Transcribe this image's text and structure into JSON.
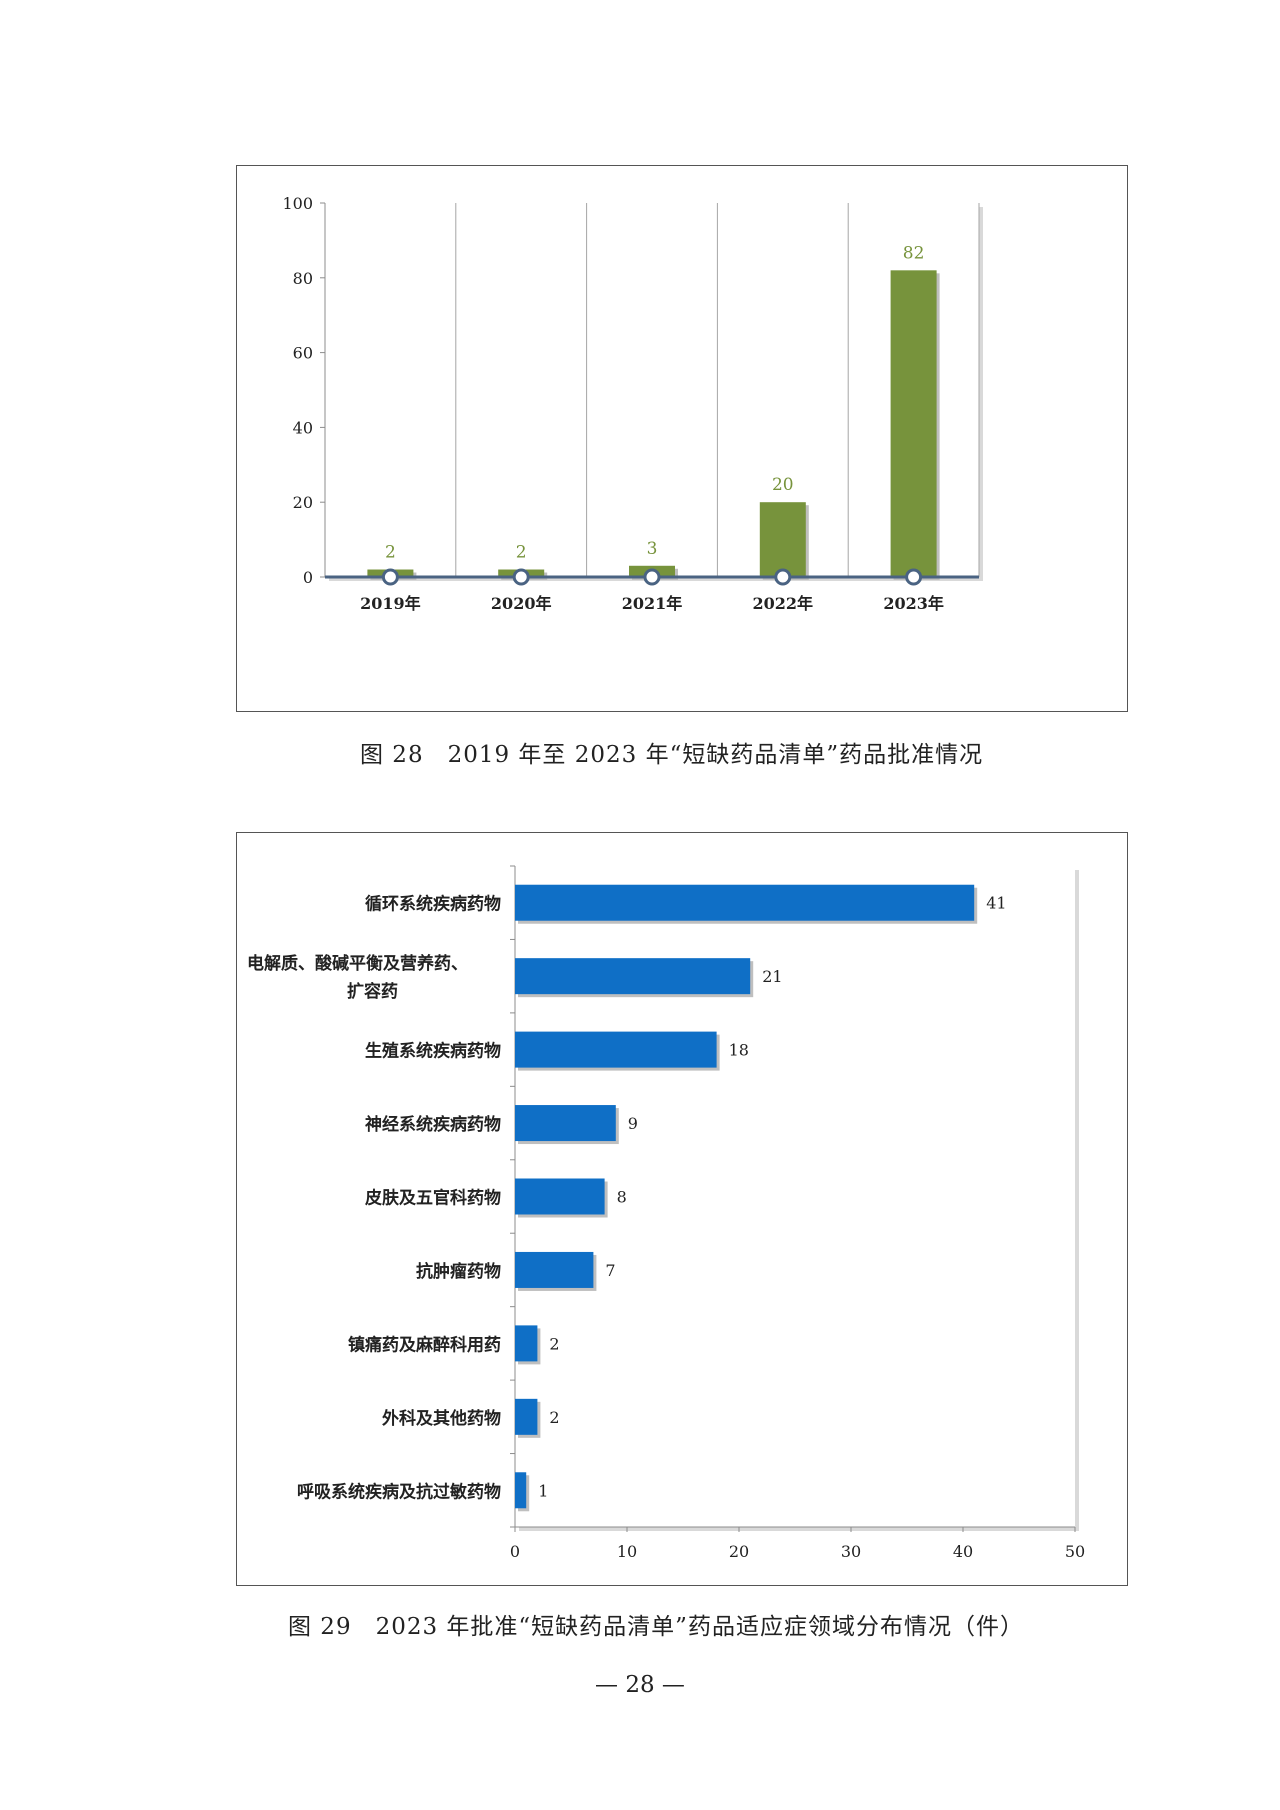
{
  "figure28": {
    "caption": "图 28　2019 年至 2023 年“短缺药品清单”药品批准情况",
    "chart_data": {
      "type": "bar",
      "categories": [
        "2019年",
        "2020年",
        "2021年",
        "2022年",
        "2023年"
      ],
      "values": [
        2,
        2,
        3,
        20,
        82
      ],
      "ylim": [
        0,
        100
      ],
      "yticks": [
        "0",
        "20",
        "40",
        "60",
        "80",
        "100"
      ],
      "data_labels": [
        "2",
        "2",
        "3",
        "20",
        "82"
      ],
      "bar_color": "#77933c",
      "label_color": "#77933c",
      "baseline_color": "#4a6382",
      "grid": "vertical"
    }
  },
  "figure29": {
    "caption": "图 29　2023 年批准“短缺药品清单”药品适应症领域分布情况（件）",
    "chart_data": {
      "type": "bar",
      "orientation": "horizontal",
      "categories": [
        [
          "循环系统疾病药物"
        ],
        [
          "电解质、酸碱平衡及营养药、",
          "扩容药"
        ],
        [
          "生殖系统疾病药物"
        ],
        [
          "神经系统疾病药物"
        ],
        [
          "皮肤及五官科药物"
        ],
        [
          "抗肿瘤药物"
        ],
        [
          "镇痛药及麻醉科用药"
        ],
        [
          "外科及其他药物"
        ],
        [
          "呼吸系统疾病及抗过敏药物"
        ]
      ],
      "values": [
        41,
        21,
        18,
        9,
        8,
        7,
        2,
        2,
        1
      ],
      "data_labels": [
        "41",
        "21",
        "18",
        "9",
        "8",
        "7",
        "2",
        "2",
        "1"
      ],
      "xlim": [
        0,
        50
      ],
      "xticks": [
        "0",
        "10",
        "20",
        "30",
        "40",
        "50"
      ],
      "bar_color": "#0f6fc6"
    }
  },
  "page_number": "— 28 —"
}
